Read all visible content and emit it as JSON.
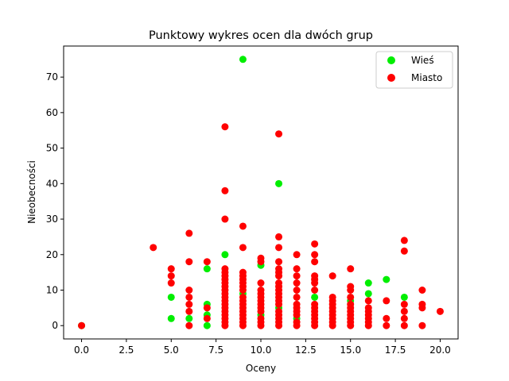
{
  "chart_data": {
    "type": "scatter",
    "title": "Punktowy wykres ocen dla dwóch grup",
    "xlabel": "Oceny",
    "ylabel": "Nieobecności",
    "xlim": [
      -1.0,
      21.0
    ],
    "ylim": [
      -3.75,
      78.75
    ],
    "xticks": [
      0.0,
      2.5,
      5.0,
      7.5,
      10.0,
      12.5,
      15.0,
      17.5,
      20.0
    ],
    "xtick_labels": [
      "0.0",
      "2.5",
      "5.0",
      "7.5",
      "10.0",
      "12.5",
      "15.0",
      "17.5",
      "20.0"
    ],
    "yticks": [
      0,
      10,
      20,
      30,
      40,
      50,
      60,
      70
    ],
    "ytick_labels": [
      "0",
      "10",
      "20",
      "30",
      "40",
      "50",
      "60",
      "70"
    ],
    "grid": false,
    "legend_position": "top-right",
    "series": [
      {
        "name": "Wieś",
        "color": "#00ee00",
        "points": [
          [
            0,
            0
          ],
          [
            5,
            2
          ],
          [
            5,
            8
          ],
          [
            6,
            2
          ],
          [
            7,
            0
          ],
          [
            7,
            3
          ],
          [
            7,
            6
          ],
          [
            7,
            16
          ],
          [
            8,
            20
          ],
          [
            9,
            75
          ],
          [
            9,
            9
          ],
          [
            10,
            17
          ],
          [
            10,
            3
          ],
          [
            11,
            40
          ],
          [
            11,
            5
          ],
          [
            12,
            2
          ],
          [
            13,
            8
          ],
          [
            15,
            7
          ],
          [
            16,
            12
          ],
          [
            16,
            9
          ],
          [
            17,
            13
          ],
          [
            18,
            8
          ]
        ]
      },
      {
        "name": "Miasto",
        "color": "#ff0000",
        "points": [
          [
            0,
            0
          ],
          [
            4,
            22
          ],
          [
            5,
            16
          ],
          [
            5,
            14
          ],
          [
            5,
            12
          ],
          [
            6,
            26
          ],
          [
            6,
            18
          ],
          [
            6,
            10
          ],
          [
            6,
            8
          ],
          [
            6,
            6
          ],
          [
            6,
            4
          ],
          [
            6,
            0
          ],
          [
            7,
            18
          ],
          [
            7,
            5
          ],
          [
            7,
            2
          ],
          [
            8,
            56
          ],
          [
            8,
            38
          ],
          [
            8,
            30
          ],
          [
            8,
            16
          ],
          [
            8,
            15
          ],
          [
            8,
            14
          ],
          [
            8,
            13
          ],
          [
            8,
            12
          ],
          [
            8,
            11
          ],
          [
            8,
            10
          ],
          [
            8,
            9
          ],
          [
            8,
            8
          ],
          [
            8,
            7
          ],
          [
            8,
            6
          ],
          [
            8,
            5
          ],
          [
            8,
            4
          ],
          [
            8,
            3
          ],
          [
            8,
            2
          ],
          [
            8,
            1
          ],
          [
            8,
            0
          ],
          [
            9,
            28
          ],
          [
            9,
            22
          ],
          [
            9,
            15
          ],
          [
            9,
            14
          ],
          [
            9,
            13
          ],
          [
            9,
            12
          ],
          [
            9,
            11
          ],
          [
            9,
            10
          ],
          [
            9,
            8
          ],
          [
            9,
            7
          ],
          [
            9,
            6
          ],
          [
            9,
            5
          ],
          [
            9,
            4
          ],
          [
            9,
            3
          ],
          [
            9,
            2
          ],
          [
            9,
            1
          ],
          [
            9,
            0
          ],
          [
            10,
            19
          ],
          [
            10,
            18
          ],
          [
            10,
            12
          ],
          [
            10,
            10
          ],
          [
            10,
            9
          ],
          [
            10,
            8
          ],
          [
            10,
            7
          ],
          [
            10,
            6
          ],
          [
            10,
            5
          ],
          [
            10,
            4
          ],
          [
            10,
            2
          ],
          [
            10,
            1
          ],
          [
            10,
            0
          ],
          [
            11,
            54
          ],
          [
            11,
            25
          ],
          [
            11,
            22
          ],
          [
            11,
            18
          ],
          [
            11,
            16
          ],
          [
            11,
            15
          ],
          [
            11,
            14
          ],
          [
            11,
            12
          ],
          [
            11,
            11
          ],
          [
            11,
            10
          ],
          [
            11,
            9
          ],
          [
            11,
            8
          ],
          [
            11,
            7
          ],
          [
            11,
            6
          ],
          [
            11,
            4
          ],
          [
            11,
            3
          ],
          [
            11,
            2
          ],
          [
            11,
            1
          ],
          [
            11,
            0
          ],
          [
            12,
            20
          ],
          [
            12,
            16
          ],
          [
            12,
            14
          ],
          [
            12,
            12
          ],
          [
            12,
            10
          ],
          [
            12,
            8
          ],
          [
            12,
            6
          ],
          [
            12,
            5
          ],
          [
            12,
            4
          ],
          [
            12,
            3
          ],
          [
            12,
            1
          ],
          [
            12,
            0
          ],
          [
            13,
            23
          ],
          [
            13,
            20
          ],
          [
            13,
            18
          ],
          [
            13,
            14
          ],
          [
            13,
            13
          ],
          [
            13,
            12
          ],
          [
            13,
            10
          ],
          [
            13,
            6
          ],
          [
            13,
            5
          ],
          [
            13,
            4
          ],
          [
            13,
            3
          ],
          [
            13,
            2
          ],
          [
            13,
            1
          ],
          [
            13,
            0
          ],
          [
            14,
            14
          ],
          [
            14,
            8
          ],
          [
            14,
            7
          ],
          [
            14,
            6
          ],
          [
            14,
            5
          ],
          [
            14,
            4
          ],
          [
            14,
            3
          ],
          [
            14,
            2
          ],
          [
            14,
            1
          ],
          [
            14,
            0
          ],
          [
            15,
            16
          ],
          [
            15,
            11
          ],
          [
            15,
            10
          ],
          [
            15,
            8
          ],
          [
            15,
            6
          ],
          [
            15,
            5
          ],
          [
            15,
            4
          ],
          [
            15,
            3
          ],
          [
            15,
            2
          ],
          [
            15,
            1
          ],
          [
            15,
            0
          ],
          [
            16,
            7
          ],
          [
            16,
            5
          ],
          [
            16,
            4
          ],
          [
            16,
            3
          ],
          [
            16,
            2
          ],
          [
            16,
            1
          ],
          [
            16,
            0
          ],
          [
            17,
            7
          ],
          [
            17,
            2
          ],
          [
            17,
            0
          ],
          [
            18,
            24
          ],
          [
            18,
            21
          ],
          [
            18,
            6
          ],
          [
            18,
            4
          ],
          [
            18,
            2
          ],
          [
            18,
            0
          ],
          [
            19,
            10
          ],
          [
            19,
            6
          ],
          [
            19,
            5
          ],
          [
            19,
            0
          ],
          [
            20,
            4
          ]
        ]
      }
    ]
  }
}
